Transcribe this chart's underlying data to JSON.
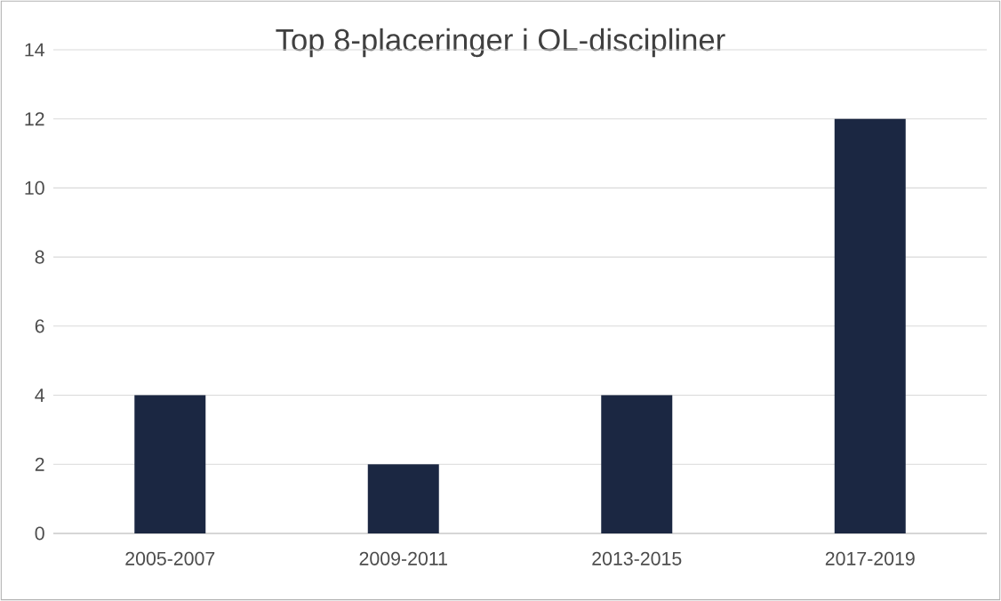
{
  "chart_data": {
    "type": "bar",
    "title": "Top 8-placeringer i OL-discipliner",
    "categories": [
      "2005-2007",
      "2009-2011",
      "2013-2015",
      "2017-2019"
    ],
    "values": [
      4,
      2,
      4,
      12
    ],
    "color": "#1b2742",
    "ylim": [
      0,
      14
    ],
    "yticks": [
      0,
      2,
      4,
      6,
      8,
      10,
      12,
      14
    ],
    "grid": "y"
  }
}
